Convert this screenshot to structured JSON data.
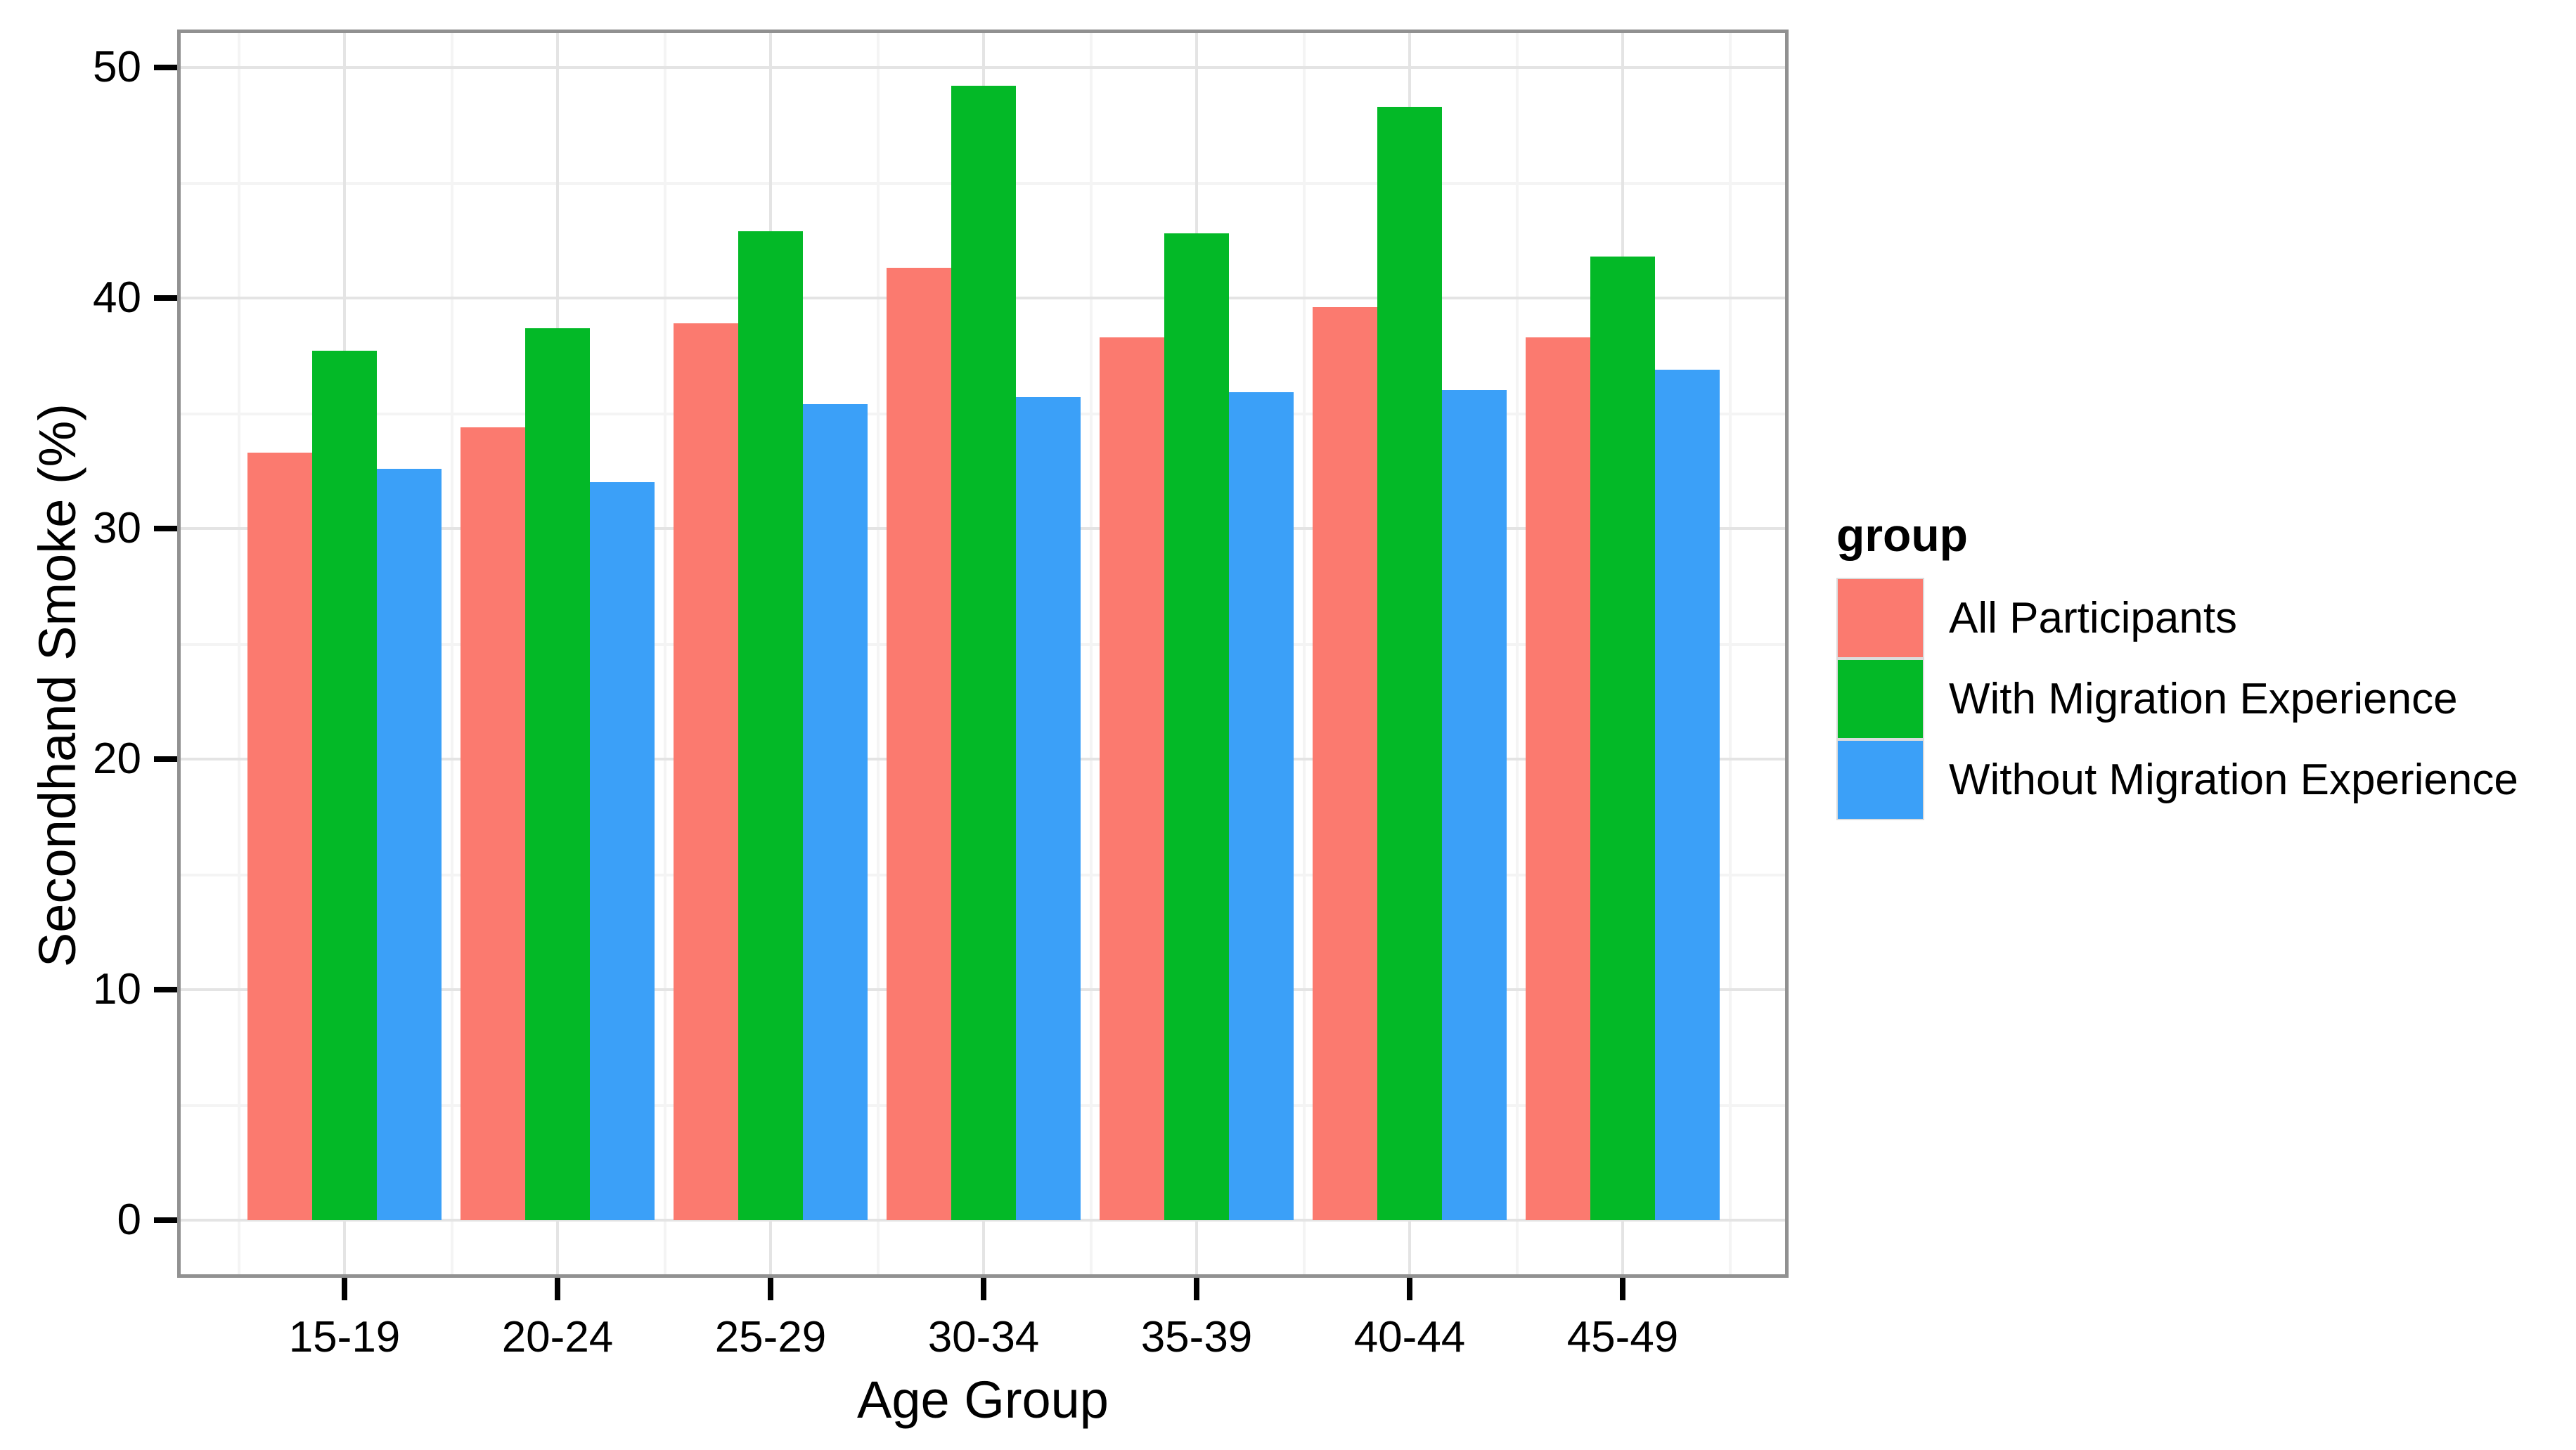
{
  "chart_data": {
    "type": "bar",
    "title": "",
    "xlabel": "Age Group",
    "ylabel": "Secondhand Smoke (%)",
    "categories": [
      "15-19",
      "20-24",
      "25-29",
      "30-34",
      "35-39",
      "40-44",
      "45-49"
    ],
    "series": [
      {
        "name": "All Participants",
        "color": "#FB7A6F",
        "values": [
          33.3,
          34.4,
          38.9,
          41.3,
          38.3,
          39.6,
          38.3
        ]
      },
      {
        "name": "With Migration Experience",
        "color": "#03B927",
        "values": [
          37.7,
          38.7,
          42.9,
          49.2,
          42.8,
          48.3,
          41.8
        ]
      },
      {
        "name": "Without Migration Experience",
        "color": "#3BA0F8",
        "values": [
          32.6,
          32.0,
          35.4,
          35.7,
          35.9,
          36.0,
          36.9
        ]
      }
    ],
    "ylim": [
      0,
      50
    ],
    "yticks": [
      0,
      10,
      20,
      30,
      40,
      50
    ],
    "yticks_minor": [
      5,
      15,
      25,
      35,
      45
    ],
    "grid": "on",
    "legend_title": "group",
    "legend_position": "right",
    "colors": {
      "panel_border": "#919191",
      "grid_major": "#e4e4e4",
      "grid_minor": "#f4f4f4",
      "tick": "#000000",
      "text": "#000000",
      "background": "#ffffff"
    }
  }
}
